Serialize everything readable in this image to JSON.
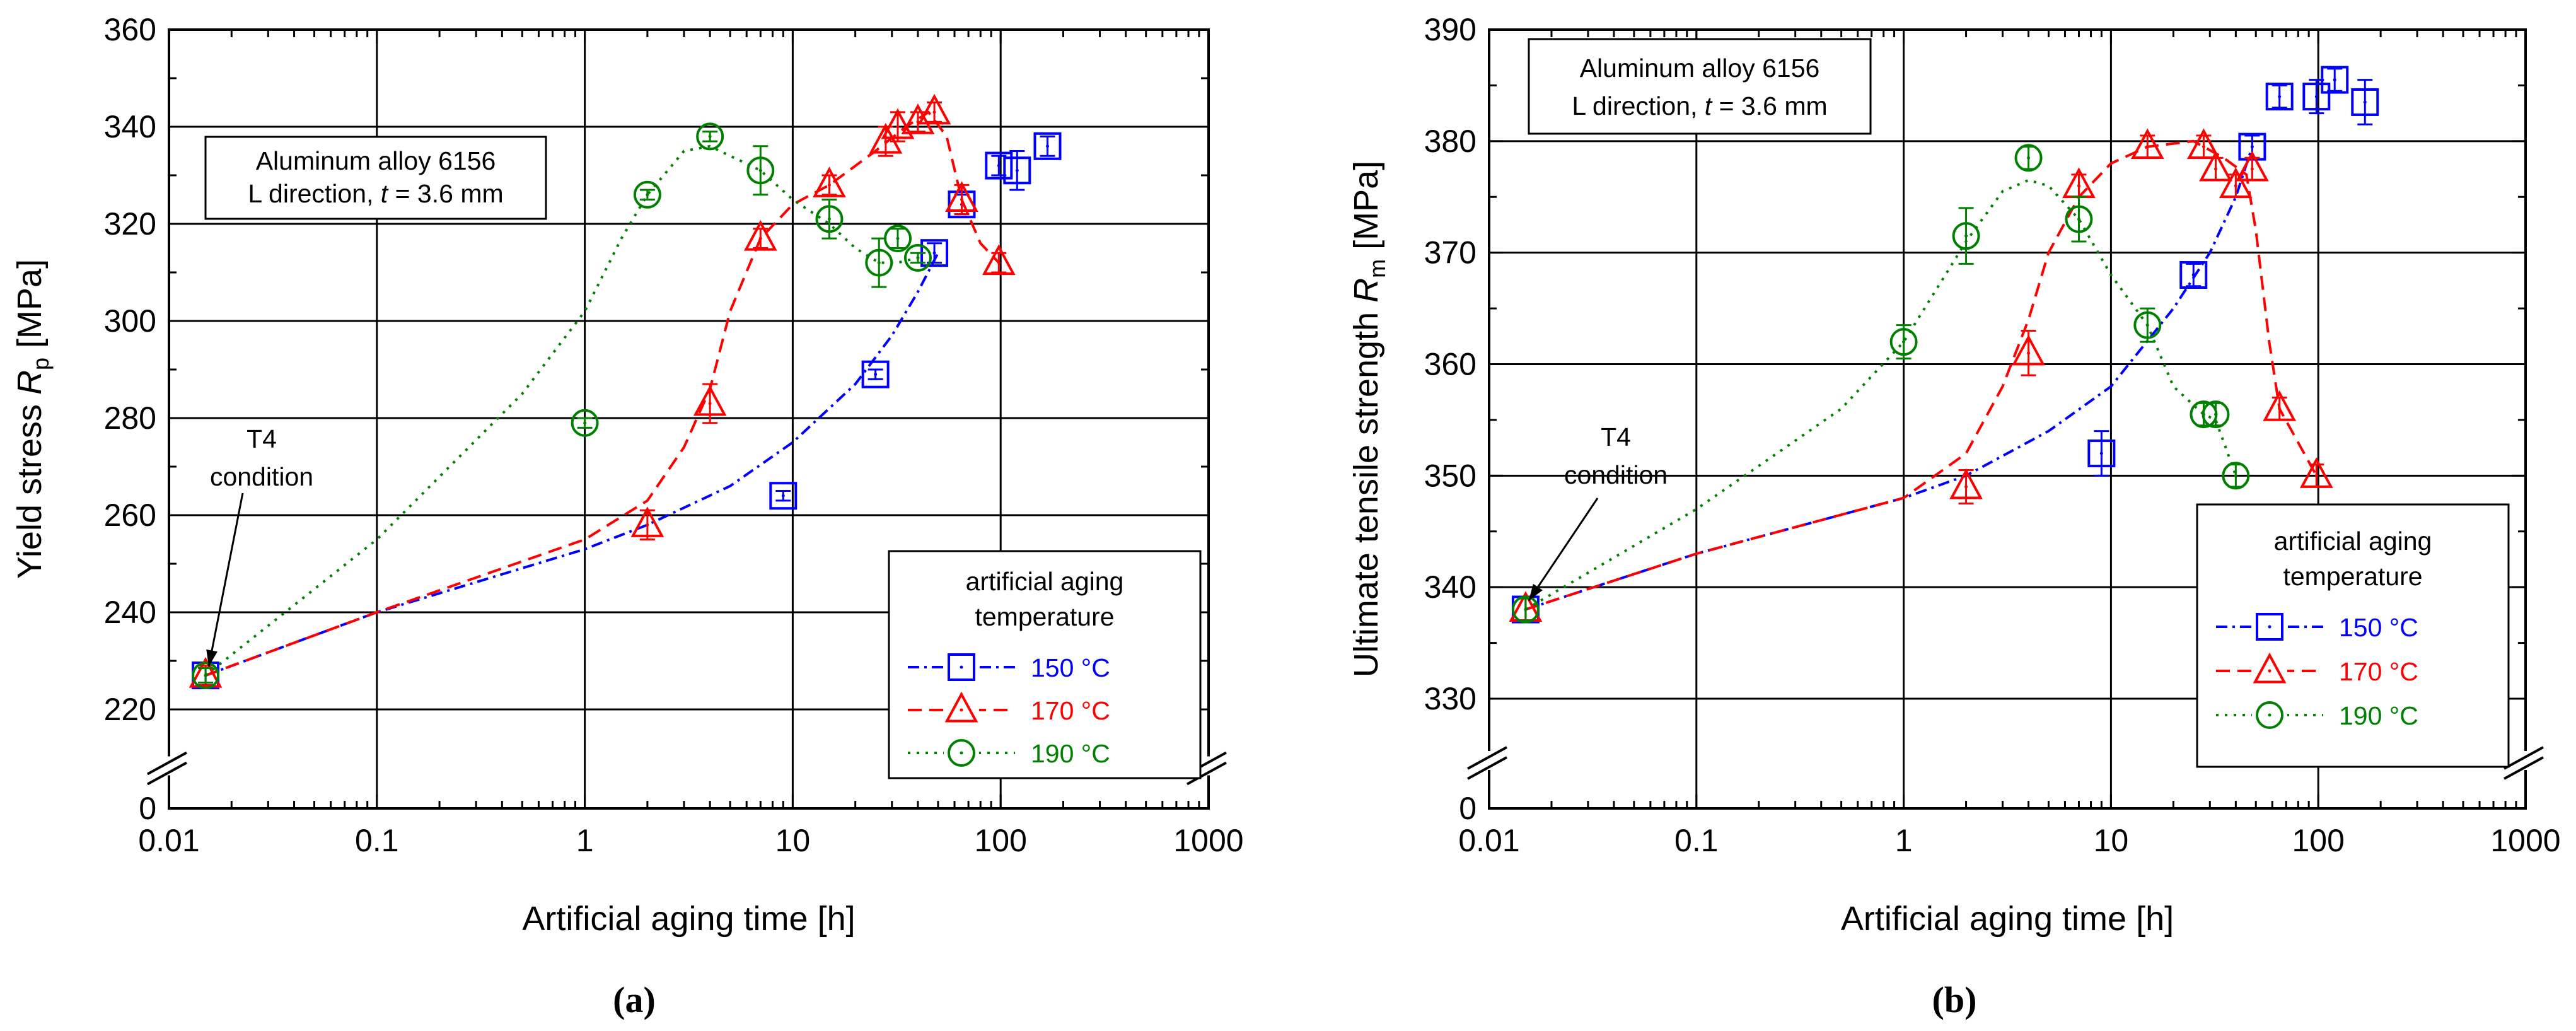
{
  "chart_data": [
    {
      "panel_label": "(a)",
      "type": "scatter",
      "x_scale": "log",
      "xlim": [
        0.01,
        1000
      ],
      "x_ticks": [
        "0.01",
        "0.1",
        "1",
        "10",
        "100",
        "1000"
      ],
      "xlabel": "Artificial aging time [h]",
      "ylabel_main": "Yield stress ",
      "ylabel_symbol": "R",
      "ylabel_sub": "p",
      "ylabel_unit": " [MPa]",
      "ylim": [
        220,
        360
      ],
      "y_ticks": [
        "220",
        "240",
        "260",
        "280",
        "300",
        "320",
        "340",
        "360"
      ],
      "y_zero_label": "0",
      "axis_break": true,
      "grid": true,
      "info_box": {
        "line1": "Aluminum alloy 6156",
        "line2_prefix": "L direction, ",
        "line2_var": "t",
        "line2_suffix": " = 3.6 mm",
        "placement": "upper-left"
      },
      "annotation": {
        "line1": "T4",
        "line2": "condition",
        "x": 0.015,
        "y": 227
      },
      "legend": {
        "title_line1": "artificial aging",
        "title_line2": "temperature",
        "placement": "bottom-right"
      },
      "series": [
        {
          "name": "150 °C",
          "color": "#0000ff",
          "marker": "square",
          "line_style": "dashdot",
          "points": [
            {
              "x": 0.015,
              "y": 227
            },
            {
              "x": 9,
              "y": 264
            },
            {
              "x": 25,
              "y": 289
            },
            {
              "x": 48,
              "y": 314
            },
            {
              "x": 65,
              "y": 324
            },
            {
              "x": 98,
              "y": 332
            },
            {
              "x": 120,
              "y": 331
            },
            {
              "x": 168,
              "y": 336
            }
          ],
          "errors": [
            1.5,
            1,
            1,
            2,
            2,
            2,
            4,
            2
          ],
          "fit": [
            {
              "x": 0.015,
              "y": 227
            },
            {
              "x": 0.1,
              "y": 240
            },
            {
              "x": 1,
              "y": 253
            },
            {
              "x": 2,
              "y": 258
            },
            {
              "x": 5,
              "y": 266
            },
            {
              "x": 10,
              "y": 275
            },
            {
              "x": 20,
              "y": 287
            },
            {
              "x": 30,
              "y": 297
            },
            {
              "x": 40,
              "y": 306
            },
            {
              "x": 50,
              "y": 314
            }
          ]
        },
        {
          "name": "170 °C",
          "color": "#ff0000",
          "marker": "triangle",
          "line_style": "dash",
          "points": [
            {
              "x": 0.015,
              "y": 227
            },
            {
              "x": 2,
              "y": 258
            },
            {
              "x": 4,
              "y": 283
            },
            {
              "x": 7,
              "y": 317
            },
            {
              "x": 15,
              "y": 328
            },
            {
              "x": 28,
              "y": 337
            },
            {
              "x": 32,
              "y": 340
            },
            {
              "x": 40,
              "y": 341
            },
            {
              "x": 48,
              "y": 343
            },
            {
              "x": 65,
              "y": 325
            },
            {
              "x": 98,
              "y": 312
            }
          ],
          "errors": [
            2,
            3,
            4,
            2,
            2,
            3,
            3,
            2,
            2,
            3,
            2
          ],
          "fit": [
            {
              "x": 0.015,
              "y": 227
            },
            {
              "x": 0.1,
              "y": 240
            },
            {
              "x": 1,
              "y": 255
            },
            {
              "x": 2,
              "y": 263
            },
            {
              "x": 3,
              "y": 274
            },
            {
              "x": 4,
              "y": 286
            },
            {
              "x": 5,
              "y": 302
            },
            {
              "x": 7,
              "y": 317
            },
            {
              "x": 10,
              "y": 324
            },
            {
              "x": 15,
              "y": 328
            },
            {
              "x": 25,
              "y": 335
            },
            {
              "x": 35,
              "y": 340
            },
            {
              "x": 45,
              "y": 343
            },
            {
              "x": 55,
              "y": 338
            },
            {
              "x": 65,
              "y": 325
            },
            {
              "x": 80,
              "y": 316
            },
            {
              "x": 98,
              "y": 312
            }
          ]
        },
        {
          "name": "190 °C",
          "color": "#008000",
          "marker": "circle",
          "line_style": "dot",
          "points": [
            {
              "x": 0.015,
              "y": 227
            },
            {
              "x": 1,
              "y": 279
            },
            {
              "x": 2,
              "y": 326
            },
            {
              "x": 4,
              "y": 338
            },
            {
              "x": 7,
              "y": 331
            },
            {
              "x": 15,
              "y": 321
            },
            {
              "x": 26,
              "y": 312
            },
            {
              "x": 32,
              "y": 317
            },
            {
              "x": 40,
              "y": 313
            }
          ],
          "errors": [
            1.5,
            1,
            1,
            1,
            5,
            4,
            5,
            2,
            1
          ],
          "fit": [
            {
              "x": 0.015,
              "y": 227
            },
            {
              "x": 0.1,
              "y": 255
            },
            {
              "x": 0.5,
              "y": 285
            },
            {
              "x": 1,
              "y": 302
            },
            {
              "x": 1.5,
              "y": 317
            },
            {
              "x": 2,
              "y": 326
            },
            {
              "x": 3,
              "y": 335
            },
            {
              "x": 4,
              "y": 336
            },
            {
              "x": 5,
              "y": 334
            },
            {
              "x": 7,
              "y": 331
            },
            {
              "x": 10,
              "y": 325
            },
            {
              "x": 15,
              "y": 320
            },
            {
              "x": 20,
              "y": 315
            },
            {
              "x": 26,
              "y": 312
            },
            {
              "x": 32,
              "y": 312
            },
            {
              "x": 40,
              "y": 313
            }
          ]
        }
      ]
    },
    {
      "panel_label": "(b)",
      "type": "scatter",
      "x_scale": "log",
      "xlim": [
        0.01,
        1000
      ],
      "x_ticks": [
        "0.01",
        "0.1",
        "1",
        "10",
        "100",
        "1000"
      ],
      "xlabel": "Artificial aging time [h]",
      "ylabel_main": "Ultimate tensile strength ",
      "ylabel_symbol": "R",
      "ylabel_sub": "m",
      "ylabel_unit": " [MPa]",
      "ylim": [
        330,
        390
      ],
      "y_ticks": [
        "330",
        "340",
        "350",
        "360",
        "370",
        "380",
        "390"
      ],
      "y_zero_label": "0",
      "axis_break": true,
      "grid": true,
      "info_box": {
        "line1": "Aluminum alloy 6156",
        "line2_prefix": "L direction, ",
        "line2_var": "t",
        "line2_suffix": " = 3.6 mm",
        "placement": "upper-left"
      },
      "annotation": {
        "line1": "T4",
        "line2": "condition",
        "x": 0.015,
        "y": 338
      },
      "legend": {
        "title_line1": "artificial aging",
        "title_line2": "temperature",
        "placement": "bottom-right"
      },
      "series": [
        {
          "name": "150 °C",
          "color": "#0000ff",
          "marker": "square",
          "line_style": "dashdot",
          "points": [
            {
              "x": 0.015,
              "y": 338
            },
            {
              "x": 9,
              "y": 352
            },
            {
              "x": 25,
              "y": 368
            },
            {
              "x": 48,
              "y": 379.5
            },
            {
              "x": 65,
              "y": 384
            },
            {
              "x": 98,
              "y": 384
            },
            {
              "x": 120,
              "y": 385.5
            },
            {
              "x": 168,
              "y": 383.5
            }
          ],
          "errors": [
            1,
            2,
            1,
            1,
            1,
            1.5,
            1,
            2
          ],
          "fit": [
            {
              "x": 0.015,
              "y": 338
            },
            {
              "x": 0.1,
              "y": 343
            },
            {
              "x": 1,
              "y": 348
            },
            {
              "x": 2,
              "y": 350
            },
            {
              "x": 5,
              "y": 354
            },
            {
              "x": 10,
              "y": 358
            },
            {
              "x": 20,
              "y": 365
            },
            {
              "x": 30,
              "y": 370
            },
            {
              "x": 40,
              "y": 375
            },
            {
              "x": 48,
              "y": 379.5
            }
          ]
        },
        {
          "name": "170 °C",
          "color": "#ff0000",
          "marker": "triangle",
          "line_style": "dash",
          "points": [
            {
              "x": 0.015,
              "y": 338
            },
            {
              "x": 2,
              "y": 349
            },
            {
              "x": 4,
              "y": 361
            },
            {
              "x": 7,
              "y": 376
            },
            {
              "x": 15,
              "y": 379.5
            },
            {
              "x": 28,
              "y": 379.5
            },
            {
              "x": 32,
              "y": 377.5
            },
            {
              "x": 40,
              "y": 376
            },
            {
              "x": 48,
              "y": 377.5
            },
            {
              "x": 65,
              "y": 356
            },
            {
              "x": 98,
              "y": 350
            }
          ],
          "errors": [
            1,
            1.5,
            2,
            1,
            1,
            1,
            1,
            1,
            1,
            1,
            1
          ],
          "fit": [
            {
              "x": 0.015,
              "y": 338
            },
            {
              "x": 0.1,
              "y": 343
            },
            {
              "x": 1,
              "y": 348
            },
            {
              "x": 2,
              "y": 352
            },
            {
              "x": 3,
              "y": 358
            },
            {
              "x": 4,
              "y": 364
            },
            {
              "x": 5,
              "y": 370
            },
            {
              "x": 7,
              "y": 375
            },
            {
              "x": 10,
              "y": 378
            },
            {
              "x": 15,
              "y": 379.5
            },
            {
              "x": 25,
              "y": 380
            },
            {
              "x": 35,
              "y": 378.5
            },
            {
              "x": 45,
              "y": 377
            },
            {
              "x": 50,
              "y": 372
            },
            {
              "x": 58,
              "y": 362
            },
            {
              "x": 65,
              "y": 356
            },
            {
              "x": 98,
              "y": 350
            }
          ]
        },
        {
          "name": "190 °C",
          "color": "#008000",
          "marker": "circle",
          "line_style": "dot",
          "points": [
            {
              "x": 0.015,
              "y": 338
            },
            {
              "x": 1,
              "y": 362
            },
            {
              "x": 2,
              "y": 371.5
            },
            {
              "x": 4,
              "y": 378.5
            },
            {
              "x": 7,
              "y": 373
            },
            {
              "x": 15,
              "y": 363.5
            },
            {
              "x": 28,
              "y": 355.5
            },
            {
              "x": 32,
              "y": 355.5
            },
            {
              "x": 40,
              "y": 350
            }
          ],
          "errors": [
            1,
            1.5,
            2.5,
            1,
            2,
            1.5,
            1,
            1,
            1
          ],
          "fit": [
            {
              "x": 0.015,
              "y": 338
            },
            {
              "x": 0.1,
              "y": 347
            },
            {
              "x": 0.5,
              "y": 356
            },
            {
              "x": 1,
              "y": 362
            },
            {
              "x": 2,
              "y": 371
            },
            {
              "x": 3,
              "y": 375.5
            },
            {
              "x": 4,
              "y": 376.5
            },
            {
              "x": 5,
              "y": 376
            },
            {
              "x": 7,
              "y": 373
            },
            {
              "x": 10,
              "y": 368
            },
            {
              "x": 15,
              "y": 363.5
            },
            {
              "x": 20,
              "y": 358
            },
            {
              "x": 28,
              "y": 355.5
            },
            {
              "x": 32,
              "y": 355
            },
            {
              "x": 40,
              "y": 350
            }
          ]
        }
      ]
    }
  ]
}
